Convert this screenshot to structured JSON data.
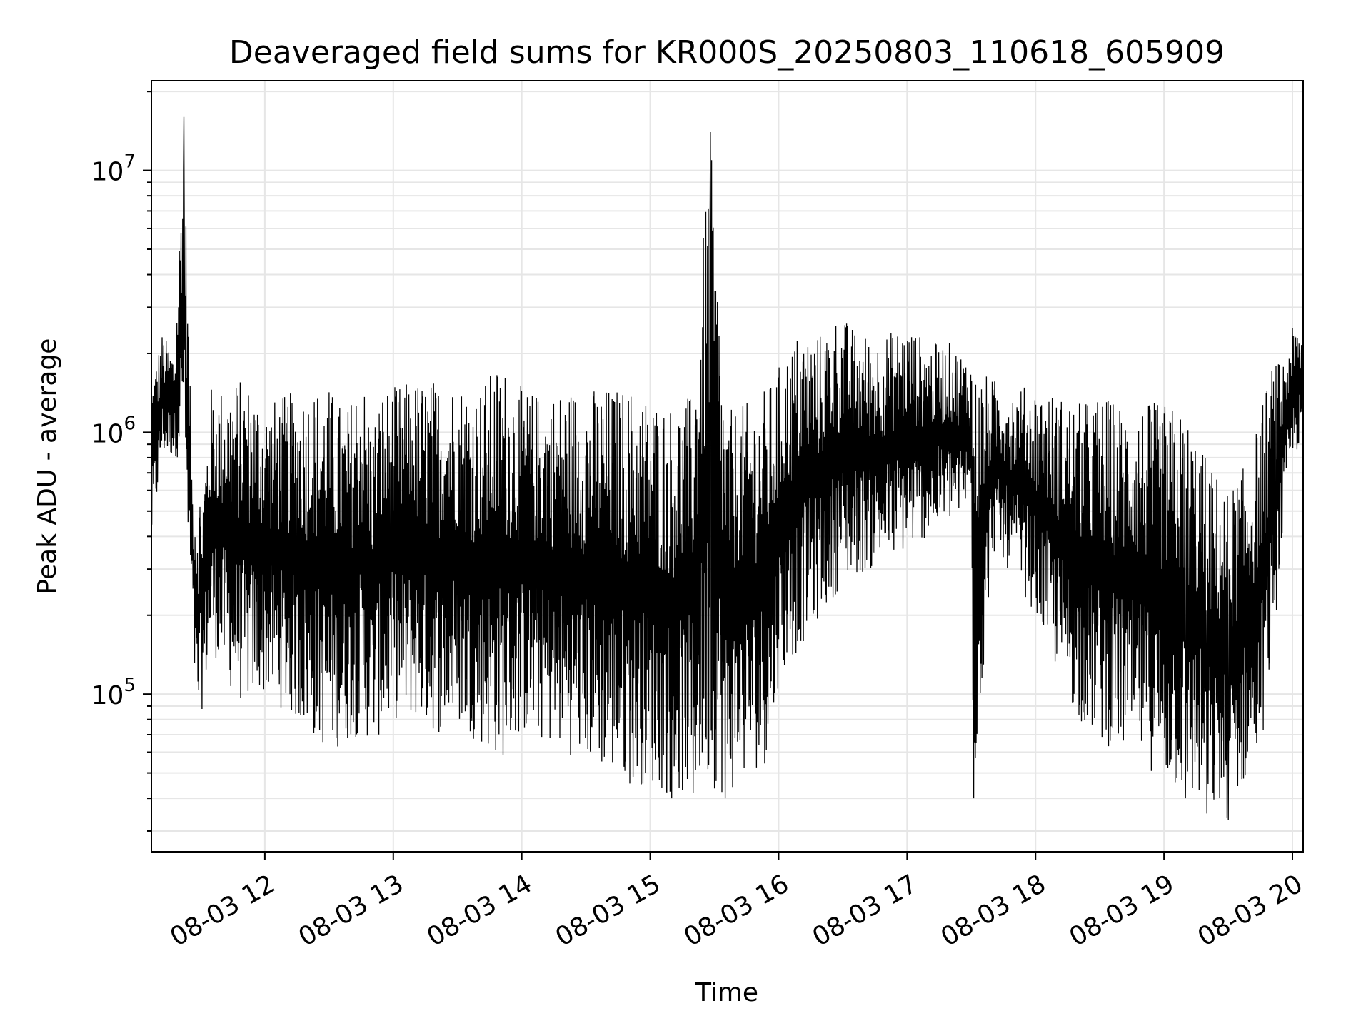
{
  "chart_data": {
    "type": "line",
    "title": "Deaveraged field sums for KR000S_20250803_110618_605909",
    "xlabel": "Time",
    "ylabel": "Peak ADU - average",
    "yscale": "log",
    "ylim": [
      25000,
      22000000
    ],
    "xlim": [
      "2025-08-03 11:07",
      "2025-08-03 20:05"
    ],
    "grid": true,
    "line_color": "#000000",
    "grid_color": "#e6e6e6",
    "x_ticks": [
      {
        "label": "08-03 12",
        "time": "2025-08-03 12:00"
      },
      {
        "label": "08-03 13",
        "time": "2025-08-03 13:00"
      },
      {
        "label": "08-03 14",
        "time": "2025-08-03 14:00"
      },
      {
        "label": "08-03 15",
        "time": "2025-08-03 15:00"
      },
      {
        "label": "08-03 16",
        "time": "2025-08-03 16:00"
      },
      {
        "label": "08-03 17",
        "time": "2025-08-03 17:00"
      },
      {
        "label": "08-03 18",
        "time": "2025-08-03 18:00"
      },
      {
        "label": "08-03 19",
        "time": "2025-08-03 19:00"
      },
      {
        "label": "08-03 20",
        "time": "2025-08-03 20:00"
      }
    ],
    "y_ticks": [
      {
        "value": 100000,
        "base": "10",
        "exp": "5"
      },
      {
        "value": 1000000,
        "base": "10",
        "exp": "6"
      },
      {
        "value": 10000000,
        "base": "10",
        "exp": "7"
      }
    ],
    "series": [
      {
        "x": [
          "2025-08-03 11:07",
          "2025-08-03 11:12",
          "2025-08-03 11:18",
          "2025-08-03 11:22",
          "2025-08-03 11:24",
          "2025-08-03 11:26",
          "2025-08-03 11:28",
          "2025-08-03 11:31",
          "2025-08-03 11:35",
          "2025-08-03 11:40",
          "2025-08-03 11:45",
          "2025-08-03 11:50",
          "2025-08-03 11:55",
          "2025-08-03 12:00",
          "2025-08-03 12:10",
          "2025-08-03 12:20",
          "2025-08-03 12:30",
          "2025-08-03 12:38",
          "2025-08-03 12:45",
          "2025-08-03 12:50",
          "2025-08-03 12:55",
          "2025-08-03 13:00",
          "2025-08-03 13:10",
          "2025-08-03 13:20",
          "2025-08-03 13:30",
          "2025-08-03 13:40",
          "2025-08-03 13:50",
          "2025-08-03 14:00",
          "2025-08-03 14:10",
          "2025-08-03 14:20",
          "2025-08-03 14:30",
          "2025-08-03 14:40",
          "2025-08-03 14:50",
          "2025-08-03 15:00",
          "2025-08-03 15:10",
          "2025-08-03 15:20",
          "2025-08-03 15:28",
          "2025-08-03 15:35",
          "2025-08-03 15:45",
          "2025-08-03 15:55",
          "2025-08-03 16:00",
          "2025-08-03 16:10",
          "2025-08-03 16:20",
          "2025-08-03 16:28",
          "2025-08-03 16:35",
          "2025-08-03 16:45",
          "2025-08-03 17:00",
          "2025-08-03 17:10",
          "2025-08-03 17:20",
          "2025-08-03 17:30",
          "2025-08-03 17:31",
          "2025-08-03 17:40",
          "2025-08-03 17:50",
          "2025-08-03 18:00",
          "2025-08-03 18:10",
          "2025-08-03 18:20",
          "2025-08-03 18:30",
          "2025-08-03 18:40",
          "2025-08-03 18:50",
          "2025-08-03 19:00",
          "2025-08-03 19:10",
          "2025-08-03 19:20",
          "2025-08-03 19:30",
          "2025-08-03 19:40",
          "2025-08-03 19:45",
          "2025-08-03 19:50",
          "2025-08-03 19:55",
          "2025-08-03 20:00",
          "2025-08-03 20:05"
        ],
        "upper": [
          1600000,
          2400000,
          2000000,
          16000000,
          3600000,
          700000,
          600000,
          650000,
          1500000,
          1500000,
          1600000,
          1600000,
          1500000,
          1300000,
          1400000,
          1500000,
          1500000,
          1200000,
          1800000,
          1100000,
          1500000,
          1500000,
          1600000,
          1600000,
          1600000,
          1500000,
          1900000,
          1500000,
          1400000,
          1500000,
          1500000,
          1500000,
          1500000,
          1400000,
          1300000,
          1400000,
          14000000,
          1200000,
          1300000,
          1500000,
          1800000,
          2500000,
          2400000,
          2900000,
          2500000,
          2300000,
          2600000,
          2200000,
          2200000,
          1900000,
          1800000,
          1600000,
          1500000,
          1500000,
          1400000,
          1300000,
          1400000,
          1300000,
          1300000,
          1300000,
          1200000,
          800000,
          600000,
          800000,
          1200000,
          1800000,
          1900000,
          2500000,
          2600000
        ],
        "lower": [
          350000,
          800000,
          800000,
          800000,
          300000,
          200000,
          70000,
          90000,
          150000,
          120000,
          100000,
          90000,
          95000,
          100000,
          85000,
          70000,
          60000,
          65000,
          70000,
          65000,
          70000,
          80000,
          80000,
          70000,
          75000,
          65000,
          55000,
          70000,
          65000,
          60000,
          55000,
          50000,
          45000,
          45000,
          40000,
          42000,
          45000,
          40000,
          48000,
          55000,
          110000,
          150000,
          200000,
          250000,
          280000,
          300000,
          350000,
          400000,
          450000,
          500000,
          40000,
          350000,
          280000,
          200000,
          120000,
          80000,
          65000,
          60000,
          55000,
          45000,
          40000,
          35000,
          33000,
          50000,
          60000,
          120000,
          350000,
          800000,
          900000
        ]
      }
    ]
  }
}
